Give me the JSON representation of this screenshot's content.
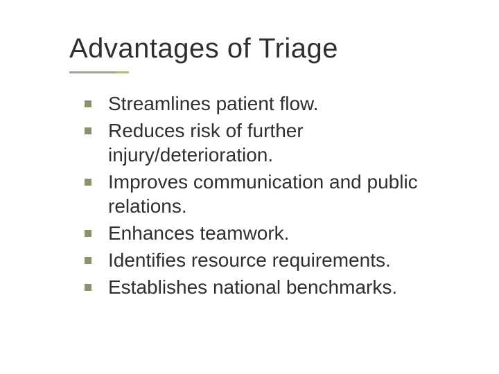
{
  "slide": {
    "title": "Advantages of Triage",
    "title_color": "#2f2f2f",
    "title_fontsize": 40,
    "underline": {
      "long_color": "#a3a38f",
      "short_color": "#c0b860",
      "long_width": 68,
      "short_width": 18,
      "height": 3
    },
    "bullet_color": "#8f8f70",
    "bullet_size": 10,
    "body_fontsize": 28,
    "body_color": "#2f2f2f",
    "background_color": "#ffffff",
    "bullets": [
      "Streamlines patient flow.",
      "Reduces risk of further injury/deterioration.",
      "Improves communication and public relations.",
      "Enhances teamwork.",
      "Identifies resource requirements.",
      "Establishes national benchmarks."
    ]
  }
}
